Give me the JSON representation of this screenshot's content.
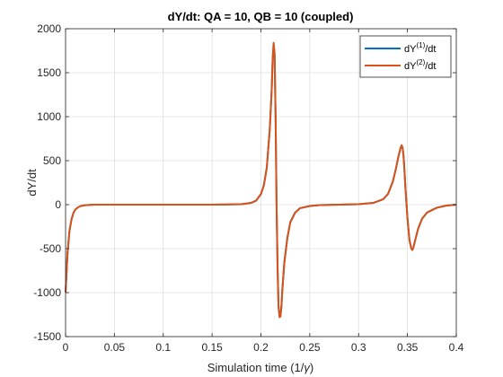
{
  "chart_data": {
    "type": "line",
    "title": "dY/dt: QA = 10, QB = 10 (coupled)",
    "xlabel_text": "Simulation time (1/",
    "xlabel_symbol": "γ",
    "xlabel_close": ")",
    "ylabel": "dY/dt",
    "xlim": [
      0,
      0.4
    ],
    "ylim": [
      -1500,
      2000
    ],
    "xticks": [
      0,
      0.05,
      0.1,
      0.15,
      0.2,
      0.25,
      0.3,
      0.35,
      0.4
    ],
    "yticks": [
      -1500,
      -1000,
      -500,
      0,
      500,
      1000,
      1500,
      2000
    ],
    "grid": true,
    "legend_position": "top-right",
    "series": [
      {
        "label_base": "dY",
        "label_sup": "(1)",
        "label_tail": "/dt",
        "color": "#0072BD",
        "x": [
          0,
          0.002,
          0.004,
          0.006,
          0.008,
          0.01,
          0.013,
          0.016,
          0.02,
          0.025,
          0.03,
          0.05,
          0.1,
          0.15,
          0.18,
          0.19,
          0.195,
          0.2,
          0.203,
          0.206,
          0.209,
          0.211,
          0.212,
          0.213,
          0.214,
          0.215,
          0.216,
          0.217,
          0.218,
          0.219,
          0.22,
          0.221,
          0.222,
          0.224,
          0.227,
          0.23,
          0.235,
          0.24,
          0.25,
          0.26,
          0.28,
          0.3,
          0.315,
          0.325,
          0.33,
          0.335,
          0.338,
          0.341,
          0.343,
          0.344,
          0.345,
          0.346,
          0.347,
          0.348,
          0.35,
          0.352,
          0.354,
          0.355,
          0.356,
          0.358,
          0.361,
          0.365,
          0.37,
          0.38,
          0.39,
          0.4
        ],
        "y": [
          -1000,
          -550,
          -300,
          -170,
          -95,
          -55,
          -28,
          -14,
          -6,
          -2,
          0,
          0,
          0,
          0,
          5,
          20,
          45,
          120,
          220,
          420,
          850,
          1300,
          1650,
          1820,
          1700,
          1000,
          0,
          -700,
          -1150,
          -1260,
          -1260,
          -1150,
          -950,
          -650,
          -380,
          -200,
          -90,
          -40,
          -15,
          -5,
          0,
          5,
          20,
          60,
          120,
          260,
          400,
          560,
          645,
          675,
          650,
          550,
          380,
          180,
          -150,
          -400,
          -500,
          -515,
          -490,
          -400,
          -270,
          -160,
          -90,
          -35,
          -10,
          0
        ]
      },
      {
        "label_base": "dY",
        "label_sup": "(2)",
        "label_tail": "/dt",
        "color": "#D95319",
        "x": [
          0,
          0.002,
          0.004,
          0.006,
          0.008,
          0.01,
          0.013,
          0.016,
          0.02,
          0.025,
          0.03,
          0.05,
          0.1,
          0.15,
          0.18,
          0.19,
          0.195,
          0.2,
          0.203,
          0.206,
          0.209,
          0.211,
          0.212,
          0.213,
          0.214,
          0.215,
          0.216,
          0.217,
          0.218,
          0.219,
          0.22,
          0.221,
          0.222,
          0.224,
          0.227,
          0.23,
          0.235,
          0.24,
          0.25,
          0.26,
          0.28,
          0.3,
          0.315,
          0.325,
          0.33,
          0.335,
          0.338,
          0.341,
          0.343,
          0.344,
          0.345,
          0.346,
          0.347,
          0.348,
          0.35,
          0.352,
          0.354,
          0.355,
          0.356,
          0.358,
          0.361,
          0.365,
          0.37,
          0.38,
          0.39,
          0.4
        ],
        "y": [
          -1000,
          -550,
          -300,
          -170,
          -95,
          -55,
          -28,
          -14,
          -6,
          -2,
          0,
          0,
          0,
          0,
          5,
          20,
          45,
          120,
          220,
          420,
          850,
          1300,
          1660,
          1840,
          1720,
          1020,
          20,
          -690,
          -1160,
          -1280,
          -1270,
          -1160,
          -960,
          -660,
          -385,
          -205,
          -92,
          -40,
          -15,
          -5,
          0,
          5,
          20,
          60,
          120,
          260,
          400,
          560,
          645,
          675,
          650,
          550,
          380,
          180,
          -150,
          -400,
          -500,
          -515,
          -490,
          -400,
          -270,
          -160,
          -90,
          -35,
          -10,
          0
        ]
      }
    ]
  }
}
